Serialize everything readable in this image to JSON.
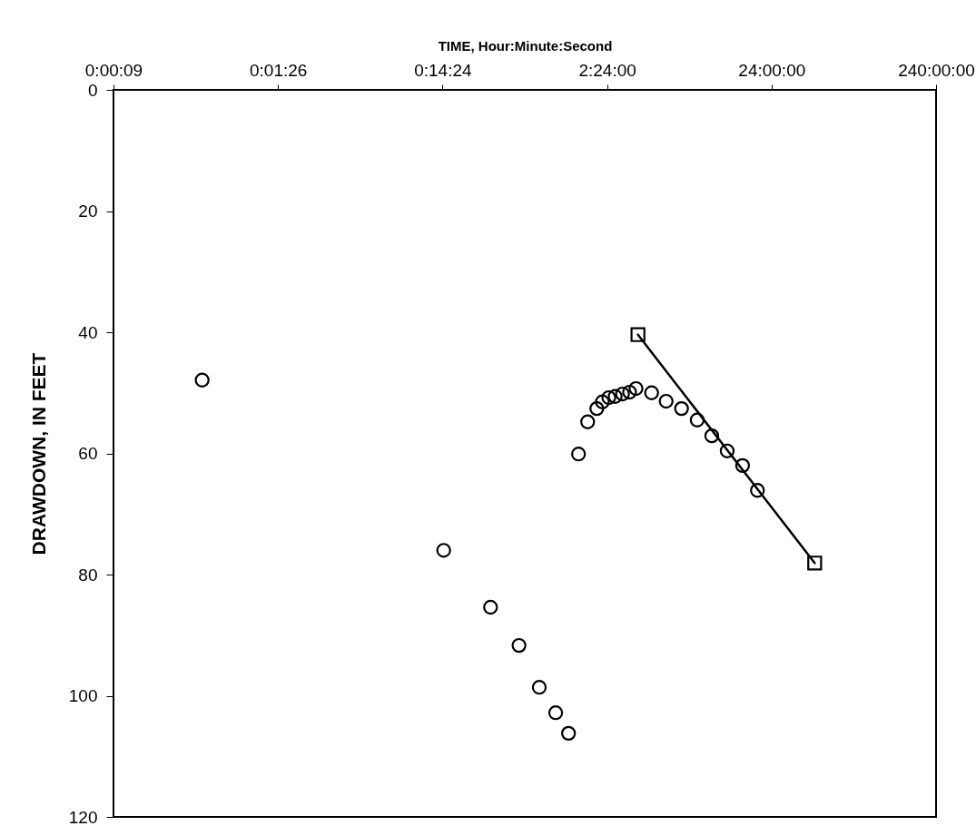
{
  "chart_data": {
    "type": "scatter",
    "xlabel": "TIME, Hour:Minute:Second",
    "ylabel": "DRAWDOWN, IN FEET",
    "log": "x",
    "grid": false,
    "xlim": [
      0.0024,
      240
    ],
    "xticks": [
      {
        "value": 0.0024,
        "label": "0:00:09"
      },
      {
        "value": 0.024,
        "label": "0:01:26"
      },
      {
        "value": 0.24,
        "label": "0:14:24"
      },
      {
        "value": 2.4,
        "label": "2:24:00"
      },
      {
        "value": 24,
        "label": "24:00:00"
      },
      {
        "value": 240,
        "label": "240:00:00"
      }
    ],
    "ylim": [
      120,
      0
    ],
    "yticks": [
      0,
      20,
      40,
      60,
      80,
      100,
      120
    ],
    "series": [
      {
        "marker": "circle",
        "color": "#000000",
        "x": [
          0.0083,
          0.244,
          0.47,
          0.7,
          0.93,
          1.17,
          1.4,
          1.61,
          1.83,
          2.08,
          2.25,
          2.46,
          2.69,
          2.98,
          3.29,
          3.6,
          4.48,
          5.49,
          6.81,
          8.48,
          10.4,
          12.9,
          16.0,
          19.7
        ],
        "values": [
          47.9,
          76.0,
          85.4,
          91.7,
          98.6,
          102.8,
          106.2,
          60.1,
          54.8,
          52.6,
          51.5,
          50.8,
          50.6,
          50.2,
          49.9,
          49.3,
          50.0,
          51.4,
          52.6,
          54.5,
          57.1,
          59.6,
          62.0,
          66.1
        ]
      },
      {
        "type": "line",
        "marker": "square",
        "line_style": "solid",
        "color": "#000000",
        "x": [
          3.7,
          43.9
        ],
        "values": [
          40.4,
          78.1
        ]
      }
    ]
  }
}
